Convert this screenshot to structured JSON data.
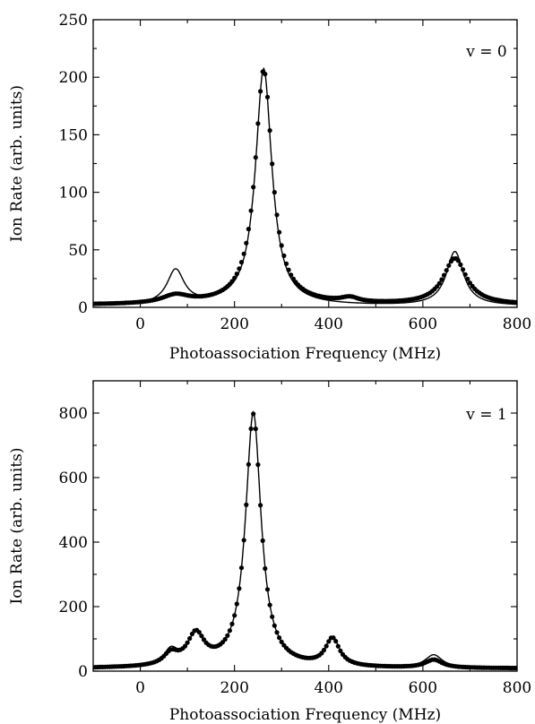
{
  "chart_data": [
    {
      "type": "scatter",
      "annotation": "v = 0",
      "xlabel": "Photoassociation Frequency (MHz)",
      "ylabel": "Ion Rate (arb. units)",
      "xlim": [
        -100,
        800
      ],
      "ylim": [
        0,
        250
      ],
      "xticks": [
        "0",
        "200",
        "400",
        "600",
        "800"
      ],
      "yticks": [
        "0",
        "50",
        "100",
        "150",
        "200",
        "250"
      ],
      "x_tick_values": [
        0,
        200,
        400,
        600,
        800
      ],
      "y_tick_values": [
        0,
        50,
        100,
        150,
        200,
        250
      ],
      "series": [
        {
          "kind": "measured points",
          "peaks": [
            {
              "x": 75,
              "height": 7,
              "width": 35
            },
            {
              "x": 262,
              "height": 204,
              "width": 22
            },
            {
              "x": 445,
              "height": 4,
              "width": 22
            },
            {
              "x": 668,
              "height": 40,
              "width": 30
            }
          ],
          "baseline": 2
        },
        {
          "kind": "fit curve",
          "peaks": [
            {
              "x": 75,
              "height": 30,
              "width": 22
            },
            {
              "x": 262,
              "height": 206,
              "width": 21
            },
            {
              "x": 668,
              "height": 47,
              "width": 22
            }
          ],
          "baseline": 1
        }
      ]
    },
    {
      "type": "scatter",
      "annotation": "v = 1",
      "xlabel": "Photoassociation Frequency (MHz)",
      "ylabel": "Ion Rate (arb. units)",
      "xlim": [
        -100,
        800
      ],
      "ylim": [
        0,
        900
      ],
      "xticks": [
        "0",
        "200",
        "400",
        "600",
        "800"
      ],
      "yticks": [
        "0",
        "200",
        "400",
        "600",
        "800"
      ],
      "x_tick_values": [
        0,
        200,
        400,
        600,
        800
      ],
      "y_tick_values": [
        0,
        200,
        400,
        600,
        800
      ],
      "series": [
        {
          "kind": "measured points",
          "peaks": [
            {
              "x": 65,
              "height": 35,
              "width": 18
            },
            {
              "x": 118,
              "height": 95,
              "width": 22
            },
            {
              "x": 240,
              "height": 785,
              "width": 20
            },
            {
              "x": 408,
              "height": 85,
              "width": 18
            },
            {
              "x": 623,
              "height": 25,
              "width": 22
            }
          ],
          "baseline": 8
        },
        {
          "kind": "fit curve",
          "peaks": [
            {
              "x": 65,
              "height": 45,
              "width": 18
            },
            {
              "x": 118,
              "height": 90,
              "width": 22
            },
            {
              "x": 240,
              "height": 790,
              "width": 20
            },
            {
              "x": 408,
              "height": 88,
              "width": 18
            },
            {
              "x": 623,
              "height": 40,
              "width": 22
            }
          ],
          "baseline": 8
        }
      ]
    }
  ]
}
